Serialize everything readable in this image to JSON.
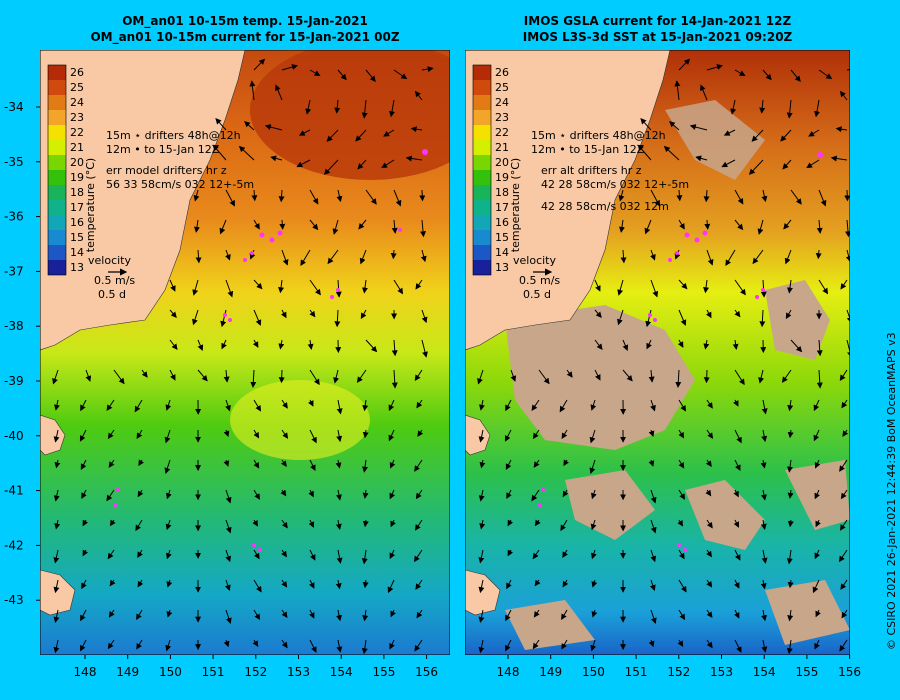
{
  "colors": {
    "background": "#00ccff",
    "land": "#f8c9a4",
    "no_data": "#c8a68a",
    "drifter": "#ff33ff",
    "arrow": "#000000"
  },
  "colorbar": {
    "label": "temperature (°C)",
    "ticks": [
      "26",
      "25",
      "24",
      "23",
      "22",
      "21",
      "20",
      "19",
      "18",
      "17",
      "16",
      "15",
      "14",
      "13"
    ],
    "colors": [
      "#b52a07",
      "#cf4a0c",
      "#e27a16",
      "#f3a52a",
      "#f4e100",
      "#d4f000",
      "#7ad600",
      "#33c10c",
      "#19b45a",
      "#10b28c",
      "#12a6b7",
      "#1a8ad0",
      "#1c58c5",
      "#18209a"
    ]
  },
  "axes": {
    "x_ticks": [
      "148",
      "149",
      "150",
      "151",
      "152",
      "153",
      "154",
      "155",
      "156"
    ],
    "y_ticks": [
      "-34",
      "-35",
      "-36",
      "-37",
      "-38",
      "-39",
      "-40",
      "-41",
      "-42",
      "-43"
    ]
  },
  "left_panel": {
    "title_line1": "OM_an01 10-15m temp. 15-Jan-2021",
    "title_line2": "OM_an01 10-15m current for 15-Jan-2021 00Z",
    "legend_drifters_line1": "15m  ⋆  drifters 48h@12h",
    "legend_drifters_line2": "12m  •  to 15-Jan 12Z",
    "legend_err_title": "err model drifters hr z",
    "legend_err_line": "56 33 58cm/s 032 12+-5m",
    "legend_err_line2": "",
    "velocity_label": "velocity",
    "velocity_scale": "0.5 m/s",
    "velocity_time": "0.5 d"
  },
  "right_panel": {
    "title_line1": "IMOS GSLA current for 14-Jan-2021 12Z",
    "title_line2": "IMOS L3S-3d SST at 15-Jan-2021 09:20Z",
    "legend_drifters_line1": "15m  ⋆  drifters 48h@12h",
    "legend_drifters_line2": "12m  •  to 15-Jan 12Z",
    "legend_err_title": "err alt drifters hr z",
    "legend_err_line": "42 28 58cm/s 032 12+-5m",
    "legend_err_line2": "42 28 58cm/s 032 12m",
    "velocity_label": "velocity",
    "velocity_scale": "0.5 m/s",
    "velocity_time": "0.5 d"
  },
  "credit": "© CSIRO 2021   26-Jan-2021 12:44:39 BoM OceanMAPS v3"
}
